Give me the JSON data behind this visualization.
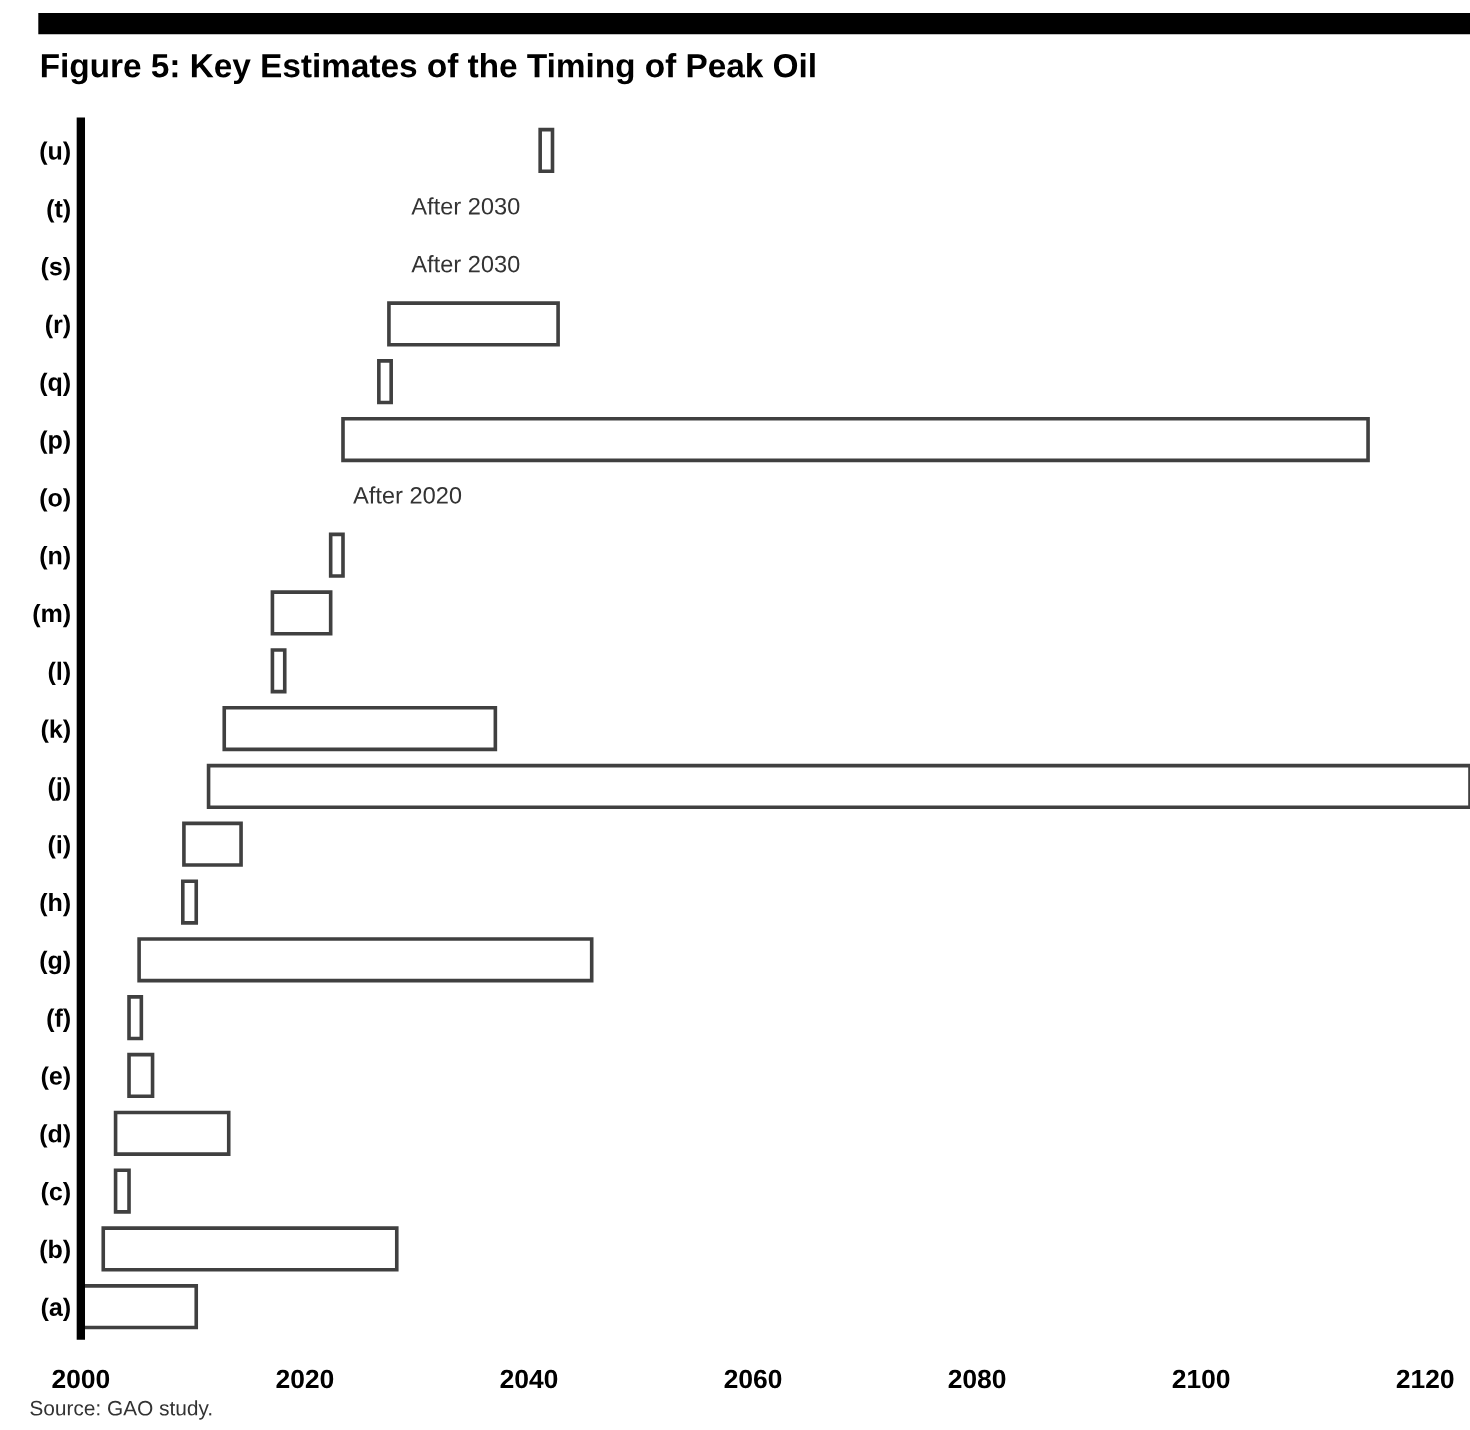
{
  "chart_data": {
    "type": "bar",
    "orientation": "horizontal",
    "title": "Figure 5: Key Estimates of the Timing of Peak Oil",
    "categories": [
      "(u)",
      "(t)",
      "(s)",
      "(r)",
      "(q)",
      "(p)",
      "(o)",
      "(n)",
      "(m)",
      "(l)",
      "(k)",
      "(j)",
      "(i)",
      "(h)",
      "(g)",
      "(f)",
      "(e)",
      "(d)",
      "(c)",
      "(b)",
      "(a)"
    ],
    "base": [
      2041,
      null,
      null,
      2027.5,
      2026.6,
      2023.4,
      null,
      2022.3,
      2017.1,
      2017.1,
      2012.8,
      2011.4,
      2009.2,
      2009.1,
      2005.2,
      2004.3,
      2004.3,
      2003.1,
      2003.1,
      2002,
      2000
    ],
    "values": [
      1.1,
      null,
      null,
      15.1,
      1.1,
      91.5,
      null,
      1.1,
      5.2,
      1.1,
      24.2,
      112.6,
      5.1,
      1.2,
      40.4,
      1.1,
      2.1,
      10.1,
      1.2,
      26.2,
      10.3
    ],
    "color": "#ffffff",
    "xlim": [
      2000,
      2124
    ],
    "xticks": [
      2000,
      2020,
      2040,
      2060,
      2080,
      2100,
      2120
    ],
    "grid": false,
    "annotations": [
      "After 2030",
      "After 2030",
      "After 2020",
      "Source: GAO study."
    ]
  }
}
